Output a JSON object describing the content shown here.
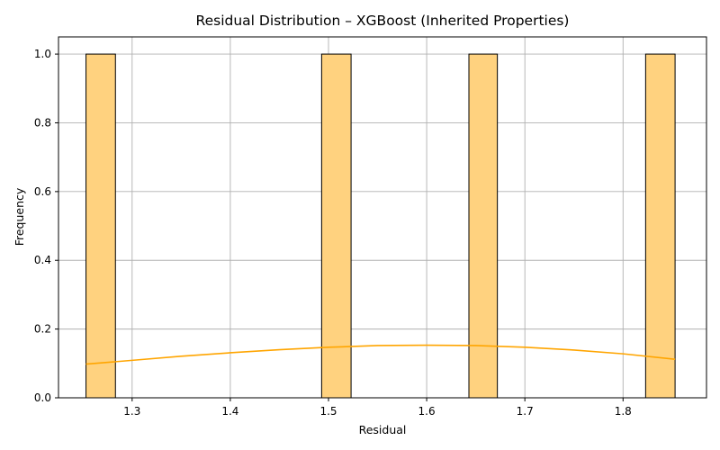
{
  "chart_data": {
    "type": "bar",
    "title": "Residual Distribution – XGBoost (Inherited Properties)",
    "xlabel": "Residual",
    "ylabel": "Frequency",
    "xlim": [
      1.225,
      1.885
    ],
    "ylim": [
      0.0,
      1.05
    ],
    "xticks": [
      1.3,
      1.4,
      1.5,
      1.6,
      1.7,
      1.8
    ],
    "xtick_labels": [
      "1.3",
      "1.4",
      "1.5",
      "1.6",
      "1.7",
      "1.8"
    ],
    "yticks": [
      0.0,
      0.2,
      0.4,
      0.6,
      0.8,
      1.0
    ],
    "ytick_labels": [
      "0.0",
      "0.2",
      "0.4",
      "0.6",
      "0.8",
      "1.0"
    ],
    "grid": true,
    "bars": [
      {
        "x_start": 1.253,
        "x_end": 1.283,
        "count": 1
      },
      {
        "x_start": 1.493,
        "x_end": 1.523,
        "count": 1
      },
      {
        "x_start": 1.643,
        "x_end": 1.672,
        "count": 1
      },
      {
        "x_start": 1.823,
        "x_end": 1.853,
        "count": 1
      }
    ],
    "kde": {
      "x": [
        1.253,
        1.3,
        1.35,
        1.4,
        1.45,
        1.5,
        1.55,
        1.6,
        1.65,
        1.7,
        1.75,
        1.8,
        1.853
      ],
      "y": [
        0.098,
        0.109,
        0.121,
        0.131,
        0.14,
        0.147,
        0.152,
        0.153,
        0.152,
        0.147,
        0.139,
        0.128,
        0.112
      ]
    },
    "colors": {
      "bar_fill": "#ffd27f",
      "bar_edge": "#000000",
      "kde_line": "#ffa500"
    }
  }
}
